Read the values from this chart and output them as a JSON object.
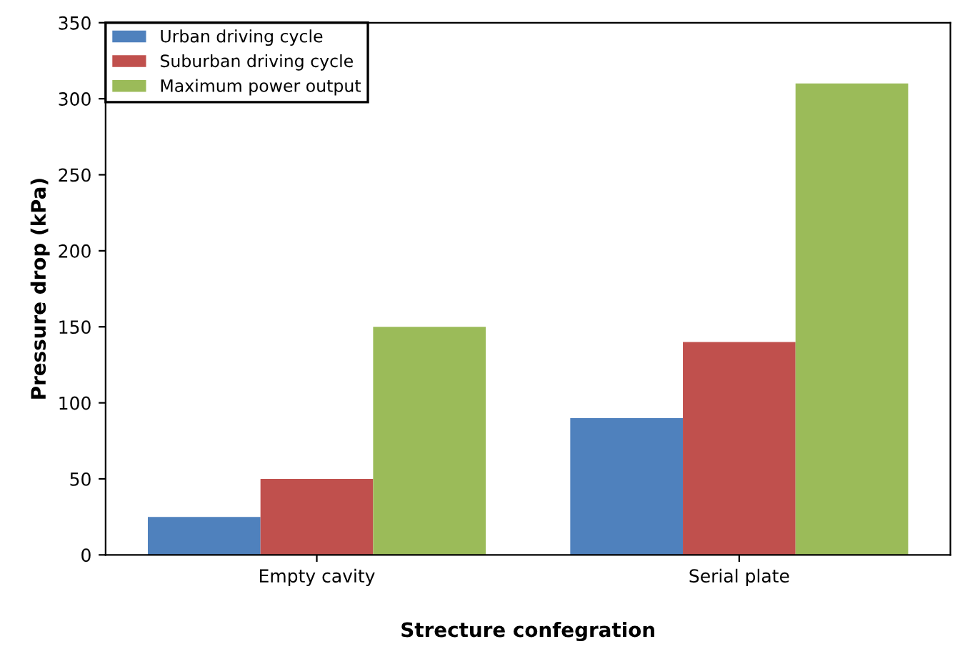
{
  "chart_data": {
    "type": "bar",
    "xlabel": "Strecture confegration",
    "ylabel": "Pressure drop (kPa)",
    "categories": [
      "Empty cavity",
      "Serial plate"
    ],
    "series": [
      {
        "name": "Urban driving cycle",
        "color": "#4f81bd",
        "values": [
          25,
          90
        ]
      },
      {
        "name": "Suburban driving cycle",
        "color": "#c0504d",
        "values": [
          50,
          140
        ]
      },
      {
        "name": "Maximum power output",
        "color": "#9bbb59",
        "values": [
          150,
          310
        ]
      }
    ],
    "ylim": [
      0,
      350
    ],
    "yticks": [
      0,
      50,
      100,
      150,
      200,
      250,
      300,
      350
    ],
    "grid": false,
    "legend": "top left"
  }
}
